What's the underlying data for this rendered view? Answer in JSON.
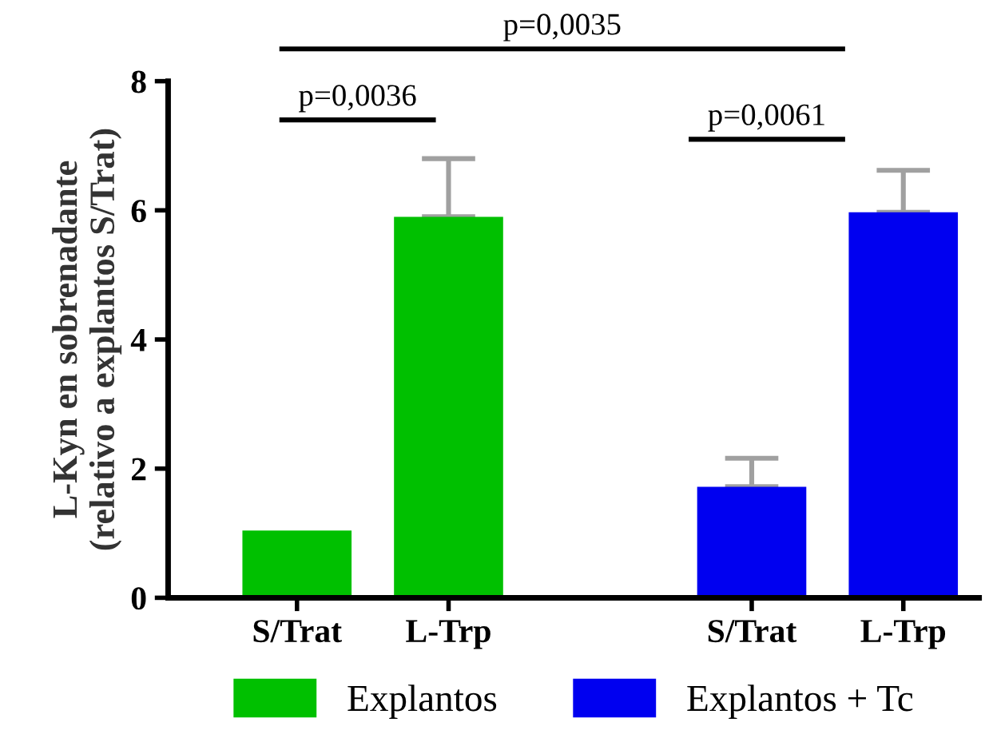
{
  "chart_data": {
    "type": "bar",
    "ylabel": "L-Kyn en sobrenadante\n(relativo a explantos S/Trat)",
    "categories": [
      "S/Trat",
      "L-Trp",
      null,
      "S/Trat",
      "L-Trp"
    ],
    "series": [
      {
        "name": "Explantos",
        "color": "#00c000",
        "values": [
          1.04,
          5.9,
          null,
          null,
          null
        ],
        "errors": [
          null,
          [
            5.9,
            6.8
          ],
          null,
          null,
          null
        ]
      },
      {
        "name": "Explantos + Tc",
        "color": "#0000f0",
        "values": [
          null,
          null,
          null,
          1.72,
          5.97
        ],
        "errors": [
          null,
          null,
          null,
          [
            1.72,
            2.16
          ],
          [
            5.97,
            6.62
          ]
        ]
      }
    ],
    "ylim": [
      0,
      8
    ],
    "yticks": [
      0,
      2,
      4,
      6,
      8
    ],
    "grid": false,
    "legend": "bottom",
    "annotations": [
      "p=0,0036",
      "p=0,0061",
      "p=0,0035"
    ]
  }
}
